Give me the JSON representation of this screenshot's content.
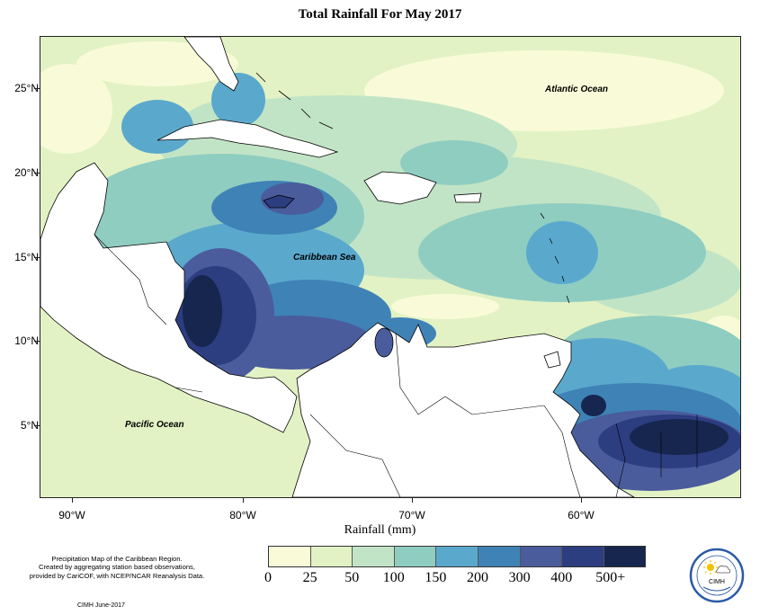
{
  "title": "Total Rainfall For May 2017",
  "map": {
    "extent": {
      "lon_min": -92,
      "lon_max": -50.5,
      "lat_min": 1,
      "lat_max": 28
    },
    "latitude_labels": [
      "25°N",
      "20°N",
      "15°N",
      "10°N",
      "5°N"
    ],
    "longitude_labels": [
      "90°W",
      "80°W",
      "70°W",
      "60°W"
    ],
    "region_labels": {
      "atlantic": "Atlantic Ocean",
      "caribbean": "Caribbean Sea",
      "pacific": "Pacific Ocean"
    },
    "colors": {
      "land": "#ffffff",
      "coast": "#000000",
      "frame": "#222222"
    }
  },
  "legend": {
    "title": "Rainfall (mm)",
    "ticks": [
      "0",
      "25",
      "50",
      "100",
      "150",
      "200",
      "300",
      "400",
      "500+"
    ],
    "bins": [
      {
        "range": "0-25",
        "color": "#f9fbd8"
      },
      {
        "range": "25-50",
        "color": "#e2f2c4"
      },
      {
        "range": "50-100",
        "color": "#c2e4c6"
      },
      {
        "range": "100-150",
        "color": "#8fcdc1"
      },
      {
        "range": "150-200",
        "color": "#5aa9cd"
      },
      {
        "range": "200-300",
        "color": "#3f82b6"
      },
      {
        "range": "300-400",
        "color": "#4a5c9c"
      },
      {
        "range": "400-500",
        "color": "#2c3d80"
      },
      {
        "range": "500+",
        "color": "#16264e"
      }
    ]
  },
  "notes": {
    "line1": "Precipitation Map of the Caribbean Region.",
    "line2": "Created by aggregating station based observations,",
    "line3": "provided by CariCOF, with NCEP/NCAR Reanalysis Data."
  },
  "credit": "CIMH June-2017",
  "logo": {
    "label": "CIMH",
    "icon": "cimh-logo-icon"
  }
}
